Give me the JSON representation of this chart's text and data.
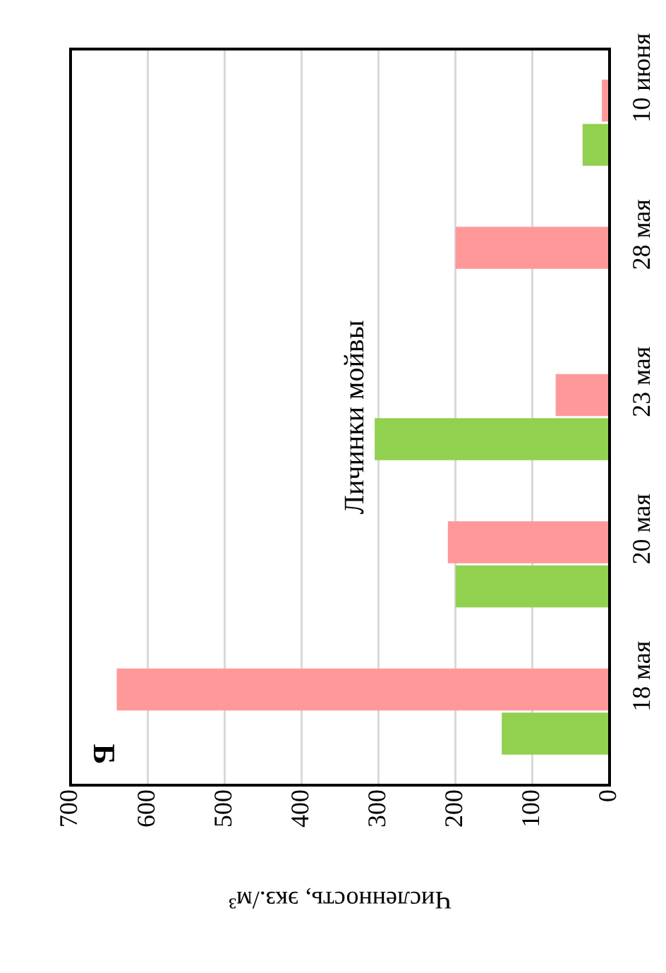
{
  "chart_data": {
    "type": "bar",
    "orientation": "horizontal",
    "title": "Личинки мойвы",
    "xlabel": "Численность, экз./м³",
    "categories": [
      "10 июня",
      "28 мая",
      "23 мая",
      "20 мая",
      "18 мая"
    ],
    "series": [
      {
        "color": "#ff9999",
        "values": [
          10,
          200,
          70,
          210,
          640
        ]
      },
      {
        "color": "#92d050",
        "values": [
          35,
          0,
          305,
          200,
          140
        ]
      }
    ],
    "xlim": [
      700,
      0
    ],
    "xticks": [
      0,
      100,
      200,
      300,
      400,
      500,
      600,
      700
    ],
    "grid": "x",
    "legend": false,
    "annotations": [
      "Б"
    ]
  }
}
